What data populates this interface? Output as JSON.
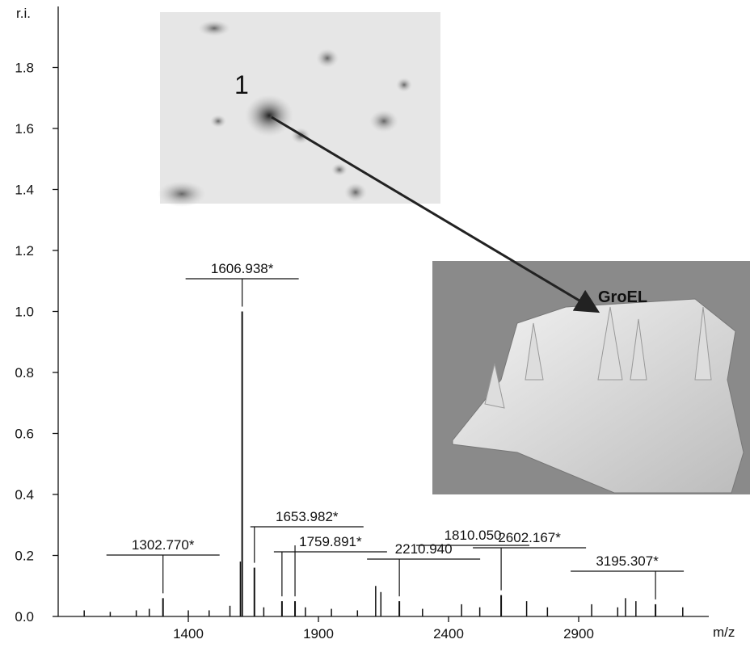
{
  "chart_data": {
    "type": "stem",
    "y_axis_label": "r.i.",
    "x_axis_label": "m/z",
    "xlim": [
      900,
      3400
    ],
    "ylim": [
      0,
      2.0
    ],
    "xticks": [
      1400,
      1900,
      2400,
      2900
    ],
    "yticks": [
      {
        "value": 0,
        "label": "0.0"
      },
      0.2,
      0.4,
      0.6,
      0.8,
      {
        "value": 1,
        "label": "1.0"
      },
      1.2,
      1.4,
      1.6,
      1.8
    ],
    "color": "#111111",
    "peaks": [
      {
        "mz": 1302.77,
        "label": "1302.770*",
        "intensity": 0.06
      },
      {
        "mz": 1606.938,
        "label": "1606.938*",
        "intensity": 1.0
      },
      {
        "mz": 1653.982,
        "label": "1653.982*",
        "intensity": 0.16
      },
      {
        "mz": 1759.891,
        "label": "1759.891*",
        "intensity": 0.05
      },
      {
        "mz": 1810.05,
        "label": "1810.050",
        "intensity": 0.05
      },
      {
        "mz": 2210.94,
        "label": "2210.940",
        "intensity": 0.05
      },
      {
        "mz": 2602.167,
        "label": "2602.167*",
        "intensity": 0.07
      },
      {
        "mz": 3195.307,
        "label": "3195.307*",
        "intensity": 0.04
      }
    ],
    "minor_peaks": {
      "x": [
        1000,
        1100,
        1200,
        1250,
        1400,
        1480,
        1560,
        1600,
        1690,
        1850,
        1950,
        2050,
        2120,
        2140,
        2300,
        2450,
        2520,
        2700,
        2780,
        2950,
        3050,
        3080,
        3120,
        3300
      ],
      "values": [
        0.02,
        0.015,
        0.02,
        0.025,
        0.02,
        0.02,
        0.035,
        0.18,
        0.03,
        0.03,
        0.025,
        0.02,
        0.1,
        0.08,
        0.025,
        0.04,
        0.03,
        0.05,
        0.03,
        0.04,
        0.03,
        0.06,
        0.05,
        0.03
      ]
    }
  },
  "insets": {
    "gel_label": "1",
    "surface_label": "GroEL"
  }
}
